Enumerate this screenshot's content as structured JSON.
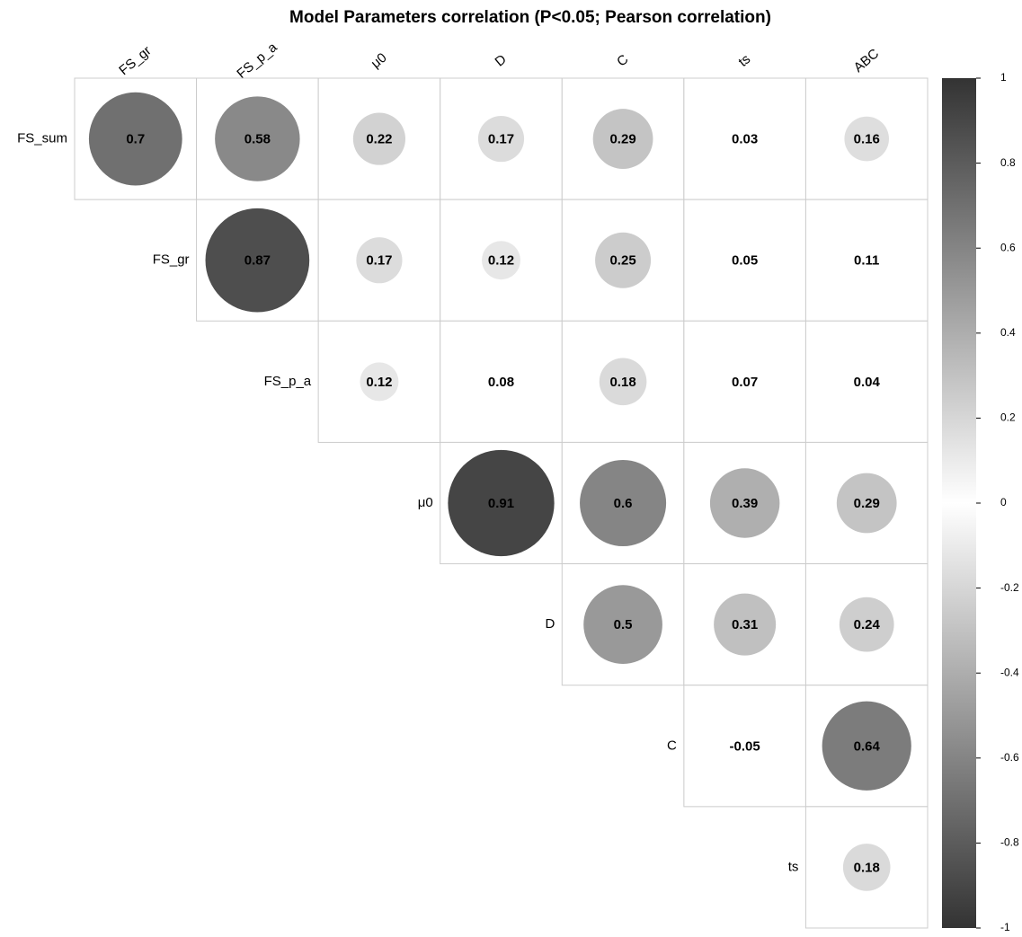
{
  "chart_data": {
    "type": "corrplot",
    "title": "Model Parameters correlation (P<0.05; Pearson correlation)",
    "rows": [
      "FS_sum",
      "FS_gr",
      "FS_p_a",
      "μ0",
      "D",
      "C",
      "ts"
    ],
    "columns": [
      "FS_gr",
      "FS_p_a",
      "μ0",
      "D",
      "C",
      "ts",
      "ABC"
    ],
    "values": [
      [
        0.7,
        0.58,
        0.22,
        0.17,
        0.29,
        0.03,
        0.16
      ],
      [
        0.87,
        0.17,
        0.12,
        0.25,
        0.05,
        0.11
      ],
      [
        0.12,
        0.08,
        0.18,
        0.07,
        0.04
      ],
      [
        0.91,
        0.6,
        0.39,
        0.29
      ],
      [
        0.5,
        0.31,
        0.24
      ],
      [
        -0.05,
        0.64
      ],
      [
        0.18
      ]
    ],
    "significant": [
      [
        true,
        true,
        true,
        true,
        true,
        false,
        true
      ],
      [
        true,
        true,
        true,
        true,
        false,
        false
      ],
      [
        true,
        false,
        true,
        false,
        false
      ],
      [
        true,
        true,
        true,
        true
      ],
      [
        true,
        true,
        true
      ],
      [
        false,
        true
      ],
      [
        true
      ]
    ],
    "zlim": [
      -1,
      1
    ],
    "zticks": [
      1,
      0.8,
      0.6,
      0.4,
      0.2,
      0,
      -0.2,
      -0.4,
      -0.6,
      -0.8,
      -1
    ],
    "colors": {
      "low": "#333333",
      "mid": "#ffffff",
      "high": "#333333"
    }
  }
}
